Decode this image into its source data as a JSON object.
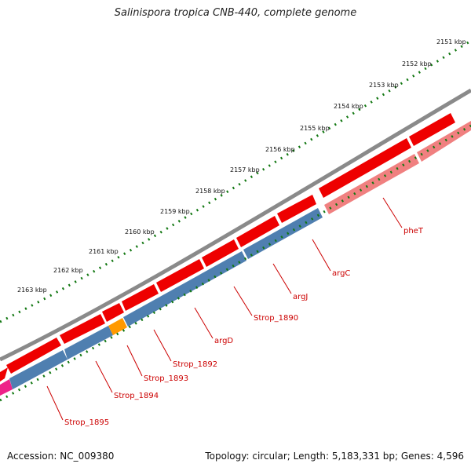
{
  "title": "Salinispora tropica CNB-440, complete genome",
  "footer": {
    "accession": "Accession: NC_009380",
    "summary": "Topology: circular; Length: 5,183,331 bp; Genes: 4,596"
  },
  "colors": {
    "backbone": "#808080",
    "cds": "#ee0000",
    "cds_light": "#f08080",
    "blue_track": "#4f7fb0",
    "orange_feature": "#ff9900",
    "magenta_feature": "#ee2288",
    "tick": "#117711",
    "label": "#cc0000"
  },
  "kbp_labels": [
    "2151 kbp",
    "2152 kbp",
    "2153 kbp",
    "2154 kbp",
    "2155 kbp",
    "2156 kbp",
    "2157 kbp",
    "2158 kbp",
    "2159 kbp",
    "2160 kbp",
    "2161 kbp",
    "2162 kbp",
    "2163 kbp"
  ],
  "gene_labels": [
    "pheT",
    "argC",
    "argJ",
    "Strop_1890",
    "argD",
    "Strop_1892",
    "Strop_1893",
    "Strop_1894",
    "Strop_1895"
  ]
}
